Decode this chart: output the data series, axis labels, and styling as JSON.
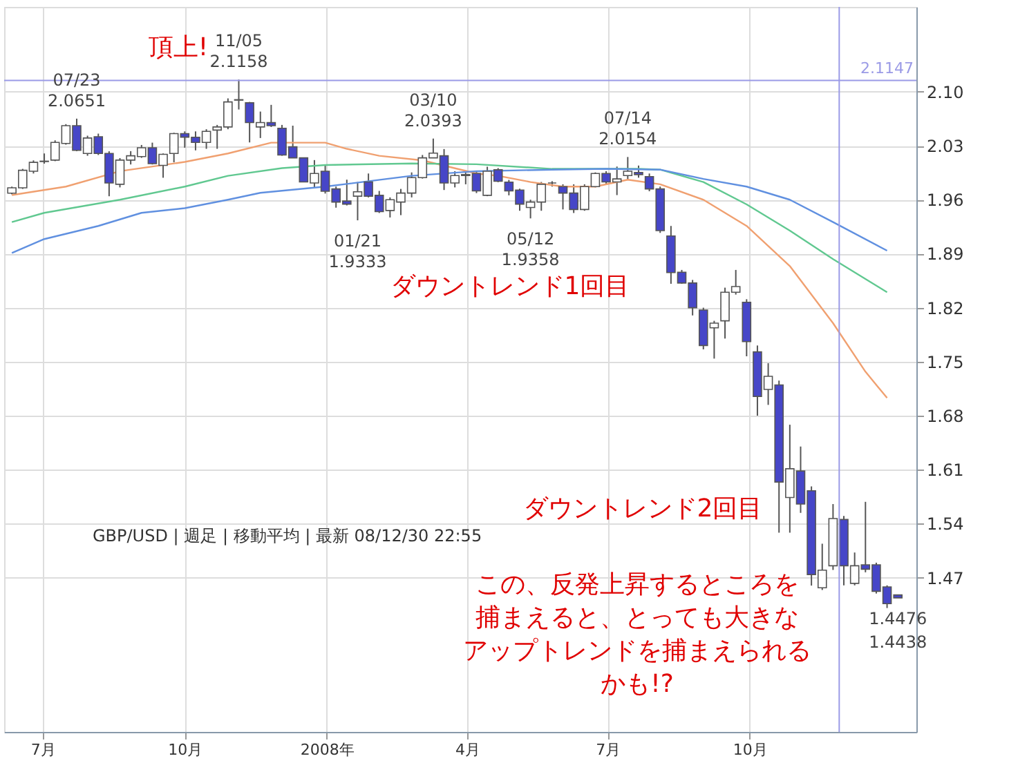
{
  "chart_data": {
    "type": "candlestick",
    "x": [
      "2007-06-11",
      "2007-06-18",
      "2007-06-25",
      "2007-07-02",
      "2007-07-09",
      "2007-07-16",
      "2007-07-23",
      "2007-07-30",
      "2007-08-06",
      "2007-08-13",
      "2007-08-20",
      "2007-08-27",
      "2007-09-03",
      "2007-09-10",
      "2007-09-17",
      "2007-09-24",
      "2007-10-01",
      "2007-10-08",
      "2007-10-15",
      "2007-10-22",
      "2007-10-29",
      "2007-11-05",
      "2007-11-12",
      "2007-11-19",
      "2007-11-26",
      "2007-12-03",
      "2007-12-10",
      "2007-12-17",
      "2007-12-24",
      "2007-12-31",
      "2008-01-07",
      "2008-01-14",
      "2008-01-21",
      "2008-01-28",
      "2008-02-04",
      "2008-02-11",
      "2008-02-18",
      "2008-02-25",
      "2008-03-03",
      "2008-03-10",
      "2008-03-17",
      "2008-03-24",
      "2008-03-31",
      "2008-04-07",
      "2008-04-14",
      "2008-04-21",
      "2008-04-28",
      "2008-05-05",
      "2008-05-12",
      "2008-05-19",
      "2008-05-26",
      "2008-06-02",
      "2008-06-09",
      "2008-06-16",
      "2008-06-23",
      "2008-06-30",
      "2008-07-07",
      "2008-07-14",
      "2008-07-21",
      "2008-07-28",
      "2008-08-04",
      "2008-08-11",
      "2008-08-18",
      "2008-08-25",
      "2008-09-01",
      "2008-09-08",
      "2008-09-15",
      "2008-09-22",
      "2008-09-29",
      "2008-10-06",
      "2008-10-13",
      "2008-10-20",
      "2008-10-27",
      "2008-11-03",
      "2008-11-10",
      "2008-11-17",
      "2008-11-24",
      "2008-12-01",
      "2008-12-08",
      "2008-12-15",
      "2008-12-22",
      "2008-12-29",
      "2009-01-05"
    ],
    "ohlc": [
      [
        1.9685,
        1.977,
        1.967,
        1.9754
      ],
      [
        1.9754,
        2.0,
        1.974,
        1.9982
      ],
      [
        1.997,
        2.011,
        1.994,
        2.0085
      ],
      [
        2.0095,
        2.02,
        2.0068,
        2.01
      ],
      [
        2.0114,
        2.037,
        2.01,
        2.0343
      ],
      [
        2.033,
        2.058,
        2.0314,
        2.056
      ],
      [
        2.056,
        2.0651,
        2.023,
        2.024
      ],
      [
        2.02,
        2.043,
        2.017,
        2.04
      ],
      [
        2.0417,
        2.0457,
        2.018,
        2.02
      ],
      [
        2.02,
        2.0228,
        1.9645,
        1.9817
      ],
      [
        1.98,
        2.014,
        1.976,
        2.0114
      ],
      [
        2.0114,
        2.023,
        2.0057,
        2.017
      ],
      [
        2.016,
        2.031,
        2.0143,
        2.0274
      ],
      [
        2.0274,
        2.034,
        2.0057,
        2.0068
      ],
      [
        2.0045,
        2.02,
        1.9885,
        2.0188
      ],
      [
        2.02,
        2.0468,
        2.0085,
        2.0457
      ],
      [
        2.0457,
        2.0486,
        2.0274,
        2.0411
      ],
      [
        2.041,
        2.0486,
        2.024,
        2.0343
      ],
      [
        2.0343,
        2.0514,
        2.026,
        2.0486
      ],
      [
        2.0503,
        2.057,
        2.026,
        2.0543
      ],
      [
        2.0543,
        2.0914,
        2.0514,
        2.0868
      ],
      [
        2.0891,
        2.1158,
        2.077,
        2.0897
      ],
      [
        2.0857,
        2.0868,
        2.0343,
        2.06
      ],
      [
        2.0543,
        2.0743,
        2.04,
        2.06
      ],
      [
        2.06,
        2.083,
        2.0543,
        2.056
      ],
      [
        2.0526,
        2.057,
        2.017,
        2.018
      ],
      [
        2.0286,
        2.056,
        2.0143,
        2.0143
      ],
      [
        2.0143,
        2.0143,
        1.983,
        1.983
      ],
      [
        1.9817,
        2.0114,
        1.976,
        1.994
      ],
      [
        1.997,
        2.0057,
        1.968,
        1.971
      ],
      [
        1.974,
        1.977,
        1.9497,
        1.957
      ],
      [
        1.9583,
        1.986,
        1.9526,
        1.9543
      ],
      [
        1.9646,
        1.983,
        1.9333,
        1.9703
      ],
      [
        1.983,
        1.994,
        1.963,
        1.9646
      ],
      [
        1.9657,
        1.9714,
        1.9428,
        1.9446
      ],
      [
        1.946,
        1.963,
        1.937,
        1.96
      ],
      [
        1.957,
        1.974,
        1.94,
        1.9686
      ],
      [
        1.9686,
        1.9954,
        1.963,
        1.9886
      ],
      [
        1.9886,
        2.018,
        1.9874,
        2.0143
      ],
      [
        2.0143,
        2.0393,
        2.0143,
        2.0205
      ],
      [
        2.017,
        2.0257,
        1.9726,
        1.9817
      ],
      [
        1.9817,
        1.997,
        1.976,
        1.9914
      ],
      [
        1.9914,
        1.997,
        1.98,
        1.9926
      ],
      [
        1.994,
        1.997,
        1.9686,
        1.9714
      ],
      [
        1.9657,
        2.0028,
        1.9646,
        1.997
      ],
      [
        1.9988,
        2.001,
        1.9828,
        1.984
      ],
      [
        1.9828,
        1.9857,
        1.9657,
        1.9714
      ],
      [
        1.9726,
        1.9743,
        1.9457,
        1.9543
      ],
      [
        1.95,
        1.96,
        1.9358,
        1.957
      ],
      [
        1.957,
        1.983,
        1.9457,
        1.98
      ],
      [
        1.9817,
        1.984,
        1.977,
        1.9817
      ],
      [
        1.977,
        1.98,
        1.9474,
        1.9686
      ],
      [
        1.9686,
        1.98,
        1.9428,
        1.9474
      ],
      [
        1.9474,
        1.98,
        1.9457,
        1.977
      ],
      [
        1.977,
        1.9954,
        1.976,
        1.994
      ],
      [
        1.994,
        1.997,
        1.98,
        1.983
      ],
      [
        1.983,
        2.003,
        1.966,
        1.987
      ],
      [
        1.9914,
        2.0154,
        1.9857,
        1.997
      ],
      [
        1.9954,
        2.0043,
        1.9886,
        1.9926
      ],
      [
        1.99,
        1.994,
        1.971,
        1.974
      ],
      [
        1.974,
        1.977,
        1.917,
        1.92
      ],
      [
        1.913,
        1.926,
        1.851,
        1.8656
      ],
      [
        1.866,
        1.869,
        1.851,
        1.852
      ],
      [
        1.852,
        1.856,
        1.81,
        1.82
      ],
      [
        1.817,
        1.82,
        1.766,
        1.771
      ],
      [
        1.794,
        1.803,
        1.754,
        1.8
      ],
      [
        1.803,
        1.846,
        1.78,
        1.84
      ],
      [
        1.84,
        1.869,
        1.837,
        1.8474
      ],
      [
        1.827,
        1.831,
        1.757,
        1.776
      ],
      [
        1.7627,
        1.771,
        1.68,
        1.705
      ],
      [
        1.714,
        1.748,
        1.694,
        1.731
      ],
      [
        1.7198,
        1.7255,
        1.5283,
        1.594
      ],
      [
        1.574,
        1.6683,
        1.5283,
        1.6112
      ],
      [
        1.6083,
        1.64,
        1.554,
        1.5654
      ],
      [
        1.5826,
        1.5883,
        1.4597,
        1.474
      ],
      [
        1.4569,
        1.514,
        1.454,
        1.4797
      ],
      [
        1.4854,
        1.5654,
        1.48,
        1.5466
      ],
      [
        1.5454,
        1.55,
        1.46,
        1.4854
      ],
      [
        1.4626,
        1.5026,
        1.46,
        1.4854
      ],
      [
        1.4866,
        1.5683,
        1.4769,
        1.4809
      ],
      [
        1.4866,
        1.4894,
        1.4494,
        1.4523
      ],
      [
        1.458,
        1.46,
        1.4306,
        1.4363
      ],
      [
        1.4476,
        1.4476,
        1.4438,
        1.4438
      ]
    ],
    "colors": [
      "#ffffff",
      "#ffffff",
      "#ffffff",
      "#ffffff",
      "#ffffff",
      "#ffffff",
      "#4646c8",
      "#ffffff",
      "#4646c8",
      "#4646c8",
      "#ffffff",
      "#ffffff",
      "#ffffff",
      "#4646c8",
      "#ffffff",
      "#ffffff",
      "#4646c8",
      "#4646c8",
      "#ffffff",
      "#ffffff",
      "#ffffff",
      "#ffffff",
      "#4646c8",
      "#ffffff",
      "#4646c8",
      "#4646c8",
      "#4646c8",
      "#4646c8",
      "#ffffff",
      "#4646c8",
      "#4646c8",
      "#4646c8",
      "#ffffff",
      "#4646c8",
      "#4646c8",
      "#ffffff",
      "#ffffff",
      "#ffffff",
      "#ffffff",
      "#ffffff",
      "#4646c8",
      "#ffffff",
      "#ffffff",
      "#4646c8",
      "#ffffff",
      "#4646c8",
      "#4646c8",
      "#4646c8",
      "#ffffff",
      "#ffffff",
      "#555555",
      "#4646c8",
      "#4646c8",
      "#ffffff",
      "#ffffff",
      "#4646c8",
      "#ffffff",
      "#ffffff",
      "#4646c8",
      "#4646c8",
      "#4646c8",
      "#4646c8",
      "#4646c8",
      "#4646c8",
      "#4646c8",
      "#ffffff",
      "#ffffff",
      "#ffffff",
      "#4646c8",
      "#4646c8",
      "#ffffff",
      "#4646c8",
      "#ffffff",
      "#4646c8",
      "#4646c8",
      "#ffffff",
      "#ffffff",
      "#4646c8",
      "#ffffff",
      "#4646c8",
      "#4646c8",
      "#4646c8",
      "#4646c8"
    ],
    "series": [
      {
        "type": "line",
        "color": "#f0a070",
        "x": [
          "2007-06-11",
          "2007-07-16",
          "2007-08-20",
          "2007-10-01",
          "2007-10-29",
          "2007-11-26",
          "2007-12-31",
          "2008-01-14",
          "2008-02-04",
          "2008-03-03",
          "2008-04-07",
          "2008-04-21",
          "2008-05-12",
          "2008-06-02",
          "2008-06-23",
          "2008-07-14",
          "2008-08-04",
          "2008-09-01",
          "2008-09-29",
          "2008-10-27",
          "2008-11-24",
          "2008-12-15",
          "2008-12-29"
        ],
        "values": [
          1.966,
          1.977,
          1.997,
          2.009,
          2.02,
          2.034,
          2.034,
          2.026,
          2.017,
          2.011,
          1.994,
          1.991,
          1.983,
          1.977,
          1.977,
          1.986,
          1.98,
          1.96,
          1.926,
          1.874,
          1.8,
          1.737,
          1.703
        ]
      },
      {
        "type": "line",
        "color": "#60c890",
        "x": [
          "2007-06-11",
          "2007-07-02",
          "2007-08-20",
          "2007-10-01",
          "2007-10-29",
          "2007-12-03",
          "2007-12-31",
          "2008-02-25",
          "2008-04-07",
          "2008-05-26",
          "2008-06-23",
          "2008-07-21",
          "2008-08-04",
          "2008-09-01",
          "2008-09-29",
          "2008-10-27",
          "2008-11-24",
          "2008-12-29"
        ],
        "values": [
          1.931,
          1.943,
          1.96,
          1.977,
          1.991,
          2.001,
          2.005,
          2.007,
          2.006,
          2.0,
          2.0,
          2.0,
          1.999,
          1.983,
          1.954,
          1.92,
          1.883,
          1.84
        ]
      },
      {
        "type": "line",
        "color": "#6090e0",
        "x": [
          "2007-06-11",
          "2007-07-02",
          "2007-08-06",
          "2007-09-03",
          "2007-10-01",
          "2007-10-29",
          "2007-11-19",
          "2007-12-31",
          "2008-02-25",
          "2008-04-07",
          "2008-05-26",
          "2008-06-30",
          "2008-08-04",
          "2008-09-01",
          "2008-09-29",
          "2008-10-27",
          "2008-11-24",
          "2008-12-29"
        ],
        "values": [
          1.891,
          1.909,
          1.926,
          1.943,
          1.949,
          1.96,
          1.969,
          1.977,
          1.991,
          1.997,
          1.999,
          2.0,
          1.999,
          1.987,
          1.977,
          1.96,
          1.931,
          1.894
        ]
      }
    ],
    "xlim": [
      "2007-06-06",
      "2009-01-17"
    ],
    "xticks": [
      {
        "value": "2007-07-01",
        "label": "7月"
      },
      {
        "value": "2007-10-01",
        "label": "10月"
      },
      {
        "value": "2008-01-01",
        "label": "2008年"
      },
      {
        "value": "2008-04-01",
        "label": "4月"
      },
      {
        "value": "2008-07-01",
        "label": "7月"
      },
      {
        "value": "2008-10-01",
        "label": "10月"
      }
    ],
    "ylim": [
      1.27,
      2.21
    ],
    "yticks": [
      1.47,
      1.54,
      1.61,
      1.68,
      1.75,
      1.82,
      1.89,
      1.96,
      2.03,
      {
        "value": 2.1,
        "label": "2.10"
      }
    ],
    "grid": true,
    "ref_lines": [
      {
        "axis": "y",
        "value": 2.1147,
        "label": "2.1147",
        "color": "#9a9ae6"
      },
      {
        "axis": "x",
        "value": "2008-11-28",
        "color": "#9a9ae6"
      }
    ],
    "annotations": [
      {
        "text": "07/23",
        "x": "2007-07-23",
        "y": 2.0651
      },
      {
        "text": "2.0651",
        "x": "2007-07-23",
        "y": 2.0651
      },
      {
        "text": "11/05",
        "x": "2007-11-05",
        "y": 2.1158
      },
      {
        "text": "2.1158",
        "x": "2007-11-05",
        "y": 2.1158
      },
      {
        "text": "01/21",
        "x": "2008-01-21",
        "y": 1.9333
      },
      {
        "text": "1.9333",
        "x": "2008-01-21",
        "y": 1.9333
      },
      {
        "text": "03/10",
        "x": "2008-03-10",
        "y": 2.0393
      },
      {
        "text": "2.0393",
        "x": "2008-03-10",
        "y": 2.0393
      },
      {
        "text": "05/12",
        "x": "2008-05-12",
        "y": 1.9358
      },
      {
        "text": "1.9358",
        "x": "2008-05-12",
        "y": 1.9358
      },
      {
        "text": "07/14",
        "x": "2008-07-14",
        "y": 2.0154
      },
      {
        "text": "2.0154",
        "x": "2008-07-14",
        "y": 2.0154
      },
      {
        "text": "1.4476",
        "x": "2009-01-05",
        "y": 1.4476
      },
      {
        "text": "1.4438",
        "x": "2009-01-05",
        "y": 1.4438
      },
      "頂上!",
      "ダウントレンド1回目",
      "ダウントレンド2回目",
      "この、反発上昇するところを",
      "捕まえると、とっても大きな",
      "アップトレンドを捕まえられる",
      "かも!?",
      "GBP/USD | 週足 | 移動平均 | 最新 08/12/30 22:55"
    ]
  }
}
